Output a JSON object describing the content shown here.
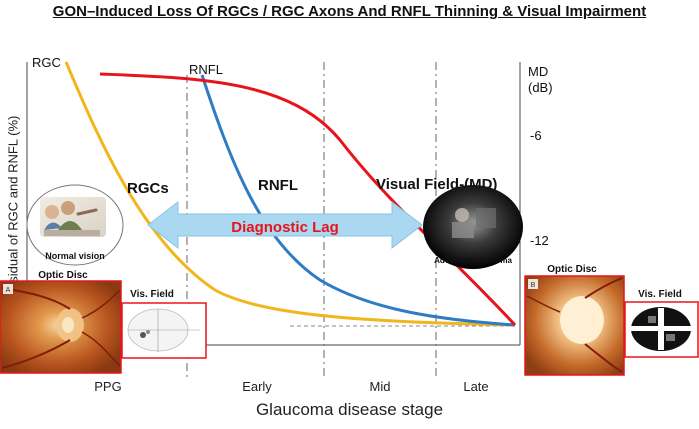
{
  "title": "GON–Induced Loss Of RGCs / RGC Axons And RNFL Thinning & Visual Impairment",
  "y_axis_label": "Residual of RGC and RNFL (%)",
  "x_axis_label": "Glaucoma disease stage",
  "stages": [
    "PPG",
    "Early",
    "Mid",
    "Late"
  ],
  "md_axis": {
    "label_line1": "MD",
    "label_line2": "(dB)",
    "ticks": [
      "-6",
      "-12"
    ]
  },
  "curves": {
    "rgc_tag": "RGC",
    "rnfl_tag": "RNFL",
    "rgc_label": "RGCs",
    "rnfl_label": "RNFL",
    "vf_label": "Visual Field-(MD)"
  },
  "lag_label": "Diagnostic Lag",
  "normal_vision_caption": "Normal vision",
  "advanced_caption": "Advanced glaucoma",
  "left_panel": {
    "optic_disc_label": "Optic Disc",
    "vis_field_label": "Vis. Field",
    "badge": "A"
  },
  "right_panel": {
    "optic_disc_label": "Optic Disc",
    "vis_field_label": "Vis. Field",
    "badge": "B"
  },
  "colors": {
    "rgc": "#F2B51C",
    "rnfl": "#2E7CC4",
    "visual_field": "#E8141C",
    "lag_arrow": "#A9D8F0",
    "lag_text": "#E8141C",
    "frame": "#E8141C"
  }
}
